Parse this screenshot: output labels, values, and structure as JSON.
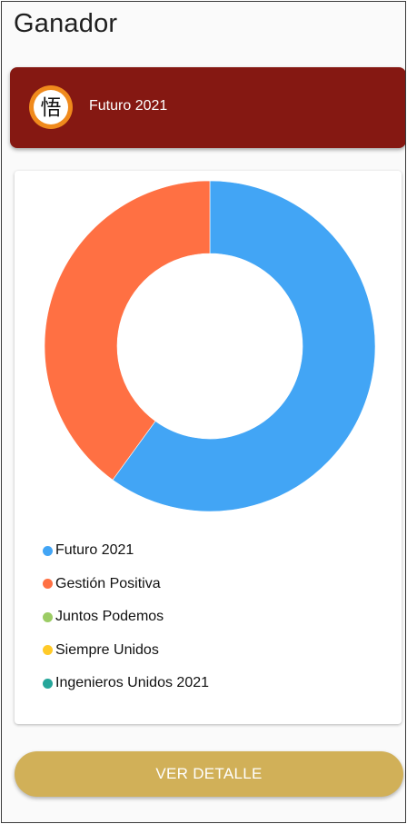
{
  "header": {
    "title": "Ganador"
  },
  "winner": {
    "name": "Futuro 2021",
    "logo_icon": "kanji-emblem-icon",
    "logo_glyph": "悟",
    "banner_color": "#851812"
  },
  "chart_data": {
    "type": "pie",
    "title": "",
    "slices": [
      {
        "label": "Futuro 2021",
        "value": 60,
        "color": "#42a5f5"
      },
      {
        "label": "Gestión Positiva",
        "value": 40,
        "color": "#ff7043"
      },
      {
        "label": "Juntos Podemos",
        "value": 0,
        "color": "#9ccc65"
      },
      {
        "label": "Siempre Unidos",
        "value": 0,
        "color": "#ffca28"
      },
      {
        "label": "Ingenieros Unidos 2021",
        "value": 0,
        "color": "#26a69a"
      }
    ],
    "legend_placement": "bottom-left",
    "donut": true
  },
  "footer": {
    "detail_button_label": "VER DETALLE",
    "button_color": "#d1b058"
  }
}
